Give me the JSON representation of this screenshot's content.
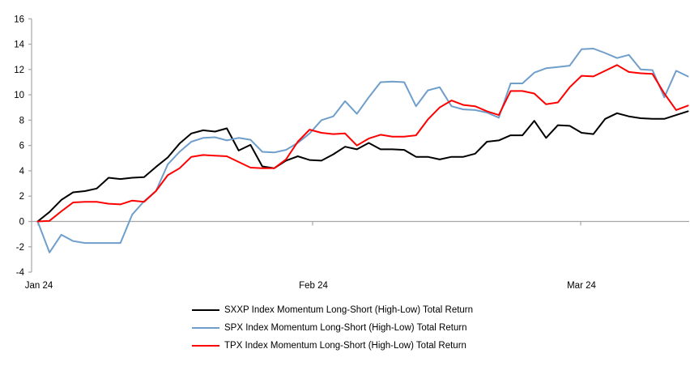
{
  "chart_data": {
    "type": "line",
    "title": "",
    "xlabel": "",
    "ylabel": "",
    "grid": "zero-line-only",
    "legend_position": "bottom-center",
    "axis_color": "#a6a6a6",
    "x_axis": {
      "ticks": [
        {
          "label": "Jan 24",
          "x": 47
        },
        {
          "label": "Feb 24",
          "x": 386
        },
        {
          "label": "Mar 24",
          "x": 717
        }
      ]
    },
    "y_axis": {
      "ylim": [
        -4,
        16
      ],
      "tick_step": 2,
      "ticks": [
        16,
        14,
        12,
        10,
        8,
        6,
        4,
        2,
        0,
        -2,
        -4
      ]
    },
    "series": [
      {
        "key": "sxxp",
        "name": "SXXP Index Momentum Long-Short (High-Low) Total Return",
        "color": "#000000",
        "values": [
          0,
          0.75,
          1.7,
          2.3,
          2.4,
          2.6,
          3.45,
          3.35,
          3.45,
          3.5,
          4.3,
          5.05,
          6.15,
          6.95,
          7.2,
          7.1,
          7.35,
          5.6,
          6.05,
          4.35,
          4.2,
          4.8,
          5.15,
          4.85,
          4.8,
          5.3,
          5.9,
          5.7,
          6.2,
          5.7,
          5.7,
          5.65,
          5.1,
          5.1,
          4.9,
          5.1,
          5.1,
          5.35,
          6.3,
          6.4,
          6.8,
          6.8,
          7.95,
          6.6,
          7.6,
          7.55,
          7.0,
          6.9,
          8.1,
          8.55,
          8.3,
          8.15,
          8.1,
          8.1,
          8.4,
          8.7
        ]
      },
      {
        "key": "spx",
        "name": "SPX Index Momentum Long-Short (High-Low) Total Return",
        "color": "#6f9ecb",
        "values": [
          0,
          -2.45,
          -1.05,
          -1.55,
          -1.7,
          -1.7,
          -1.7,
          -1.7,
          0.55,
          1.6,
          2.4,
          4.5,
          5.5,
          6.3,
          6.6,
          6.65,
          6.4,
          6.6,
          6.45,
          5.5,
          5.45,
          5.65,
          6.2,
          6.95,
          8.0,
          8.3,
          9.5,
          8.5,
          9.8,
          11.0,
          11.05,
          11.0,
          9.1,
          10.35,
          10.6,
          9.1,
          8.85,
          8.8,
          8.6,
          8.2,
          10.9,
          10.9,
          11.75,
          12.1,
          12.2,
          12.3,
          13.6,
          13.65,
          13.3,
          12.9,
          13.15,
          12.0,
          11.95,
          9.8,
          11.9,
          11.45
        ]
      },
      {
        "key": "tpx",
        "name": "TPX Index Momentum Long-Short (High-Low) Total Return",
        "color": "#ff0000",
        "values": [
          0,
          0.05,
          0.8,
          1.5,
          1.55,
          1.55,
          1.4,
          1.35,
          1.65,
          1.55,
          2.4,
          3.65,
          4.2,
          5.1,
          5.25,
          5.2,
          5.15,
          4.7,
          4.25,
          4.2,
          4.2,
          4.9,
          6.3,
          7.25,
          7.0,
          6.9,
          6.95,
          6.0,
          6.55,
          6.85,
          6.7,
          6.7,
          6.8,
          8.05,
          9.0,
          9.55,
          9.2,
          9.1,
          8.7,
          8.4,
          10.3,
          10.3,
          10.1,
          9.25,
          9.4,
          10.6,
          11.5,
          11.45,
          11.9,
          12.35,
          11.8,
          11.7,
          11.65,
          10.1,
          8.8,
          9.15
        ]
      }
    ]
  }
}
